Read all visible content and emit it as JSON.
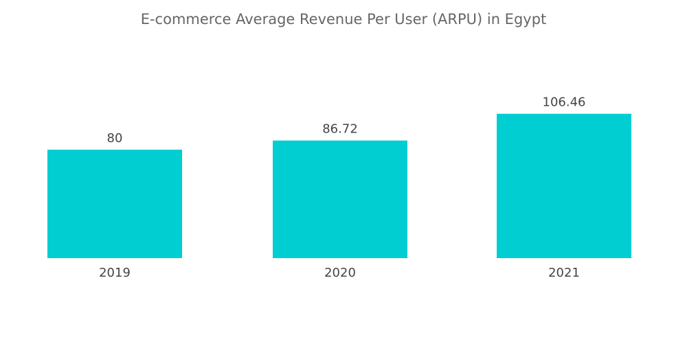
{
  "chart_data": {
    "type": "bar",
    "title": "E-commerce Average Revenue Per User (ARPU) in Egypt",
    "categories": [
      "2019",
      "2020",
      "2021"
    ],
    "values": [
      80,
      86.72,
      106.46
    ],
    "data_labels": [
      "80",
      "86.72",
      "106.46"
    ],
    "xlabel": "",
    "ylabel": "",
    "ylim": [
      0,
      110
    ],
    "grid": false,
    "bar_color": "#00CED1"
  }
}
